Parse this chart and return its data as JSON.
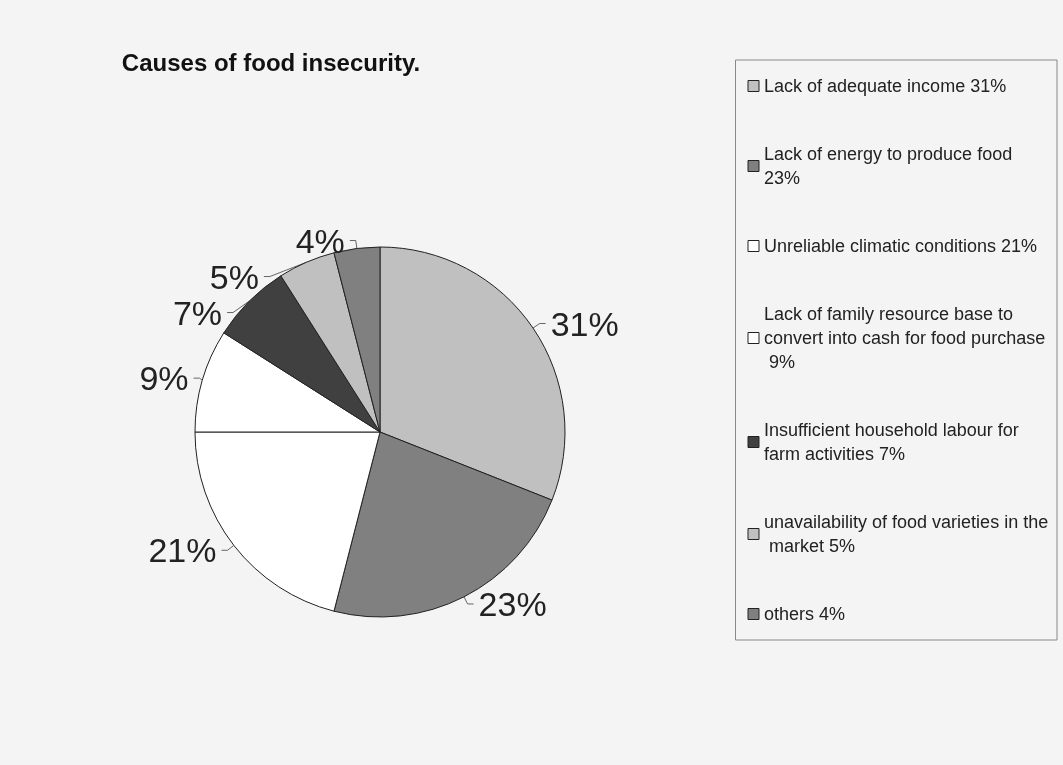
{
  "chart_data": {
    "type": "pie",
    "title": "Causes of food insecurity.",
    "categories": [
      "Lack of adequate income 31%",
      "Lack of energy to produce food 23%",
      "Unreliable climatic conditions 21%",
      "Lack of family resource base to convert into cash for food purchase 9%",
      "Insufficient household labour for farm activities 7%",
      "unavailability of food varieties in the market 5%",
      "others 4%"
    ],
    "values": [
      31,
      23,
      21,
      9,
      7,
      5,
      4
    ],
    "value_labels": [
      "31%",
      "23%",
      "21%",
      "9%",
      "7%",
      "5%",
      "4%"
    ],
    "colors": [
      "#c0c0c0",
      "#808080",
      "#ffffff",
      "#ffffff",
      "#404040",
      "#c0c0c0",
      "#808080"
    ],
    "legend": "right"
  }
}
